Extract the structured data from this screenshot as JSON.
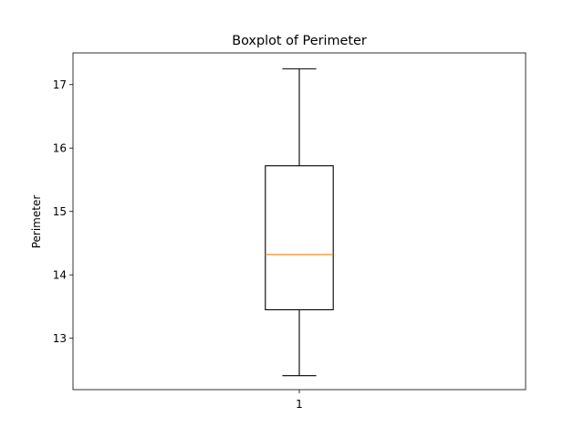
{
  "chart_data": {
    "type": "box",
    "title": "Boxplot of Perimeter",
    "xlabel": "",
    "ylabel": "Perimeter",
    "categories": [
      "1"
    ],
    "ylim": [
      12.19,
      17.5
    ],
    "yticks": [
      13,
      14,
      15,
      16,
      17
    ],
    "grid": false,
    "boxes": [
      {
        "category": "1",
        "whisker_low": 12.41,
        "q1": 13.45,
        "median": 14.32,
        "q3": 15.72,
        "whisker_high": 17.25
      }
    ],
    "colors": {
      "box": "#000000",
      "median": "#ff7f0e",
      "whisker": "#000000"
    }
  }
}
